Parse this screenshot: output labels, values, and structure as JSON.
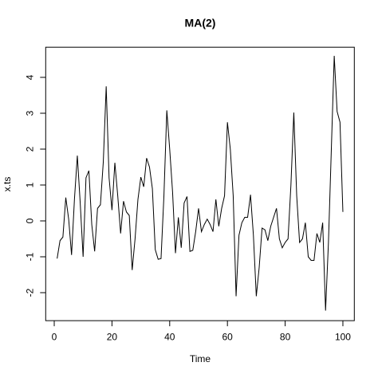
{
  "chart_data": {
    "type": "line",
    "title": "MA(2)",
    "x_label": "Time",
    "y_label": "x.ts",
    "x": [
      1,
      2,
      3,
      4,
      5,
      6,
      7,
      8,
      9,
      10,
      11,
      12,
      13,
      14,
      15,
      16,
      17,
      18,
      19,
      20,
      21,
      22,
      23,
      24,
      25,
      26,
      27,
      28,
      29,
      30,
      31,
      32,
      33,
      34,
      35,
      36,
      37,
      38,
      39,
      40,
      41,
      42,
      43,
      44,
      45,
      46,
      47,
      48,
      49,
      50,
      51,
      52,
      53,
      54,
      55,
      56,
      57,
      58,
      59,
      60,
      61,
      62,
      63,
      64,
      65,
      66,
      67,
      68,
      69,
      70,
      71,
      72,
      73,
      74,
      75,
      76,
      77,
      78,
      79,
      80,
      81,
      82,
      83,
      84,
      85,
      86,
      87,
      88,
      89,
      90,
      91,
      92,
      93,
      94,
      95,
      96,
      97,
      98,
      99,
      100
    ],
    "series": [
      {
        "name": "x.ts",
        "color": "#000000",
        "values": [
          -1.05,
          -0.55,
          -0.45,
          0.65,
          0.05,
          -0.95,
          0.6,
          1.82,
          0.5,
          -1.0,
          1.2,
          1.4,
          -0.1,
          -0.85,
          0.35,
          0.45,
          1.65,
          3.75,
          1.2,
          0.3,
          1.62,
          0.7,
          -0.35,
          0.55,
          0.25,
          0.15,
          -1.37,
          -0.5,
          0.6,
          1.22,
          0.95,
          1.75,
          1.5,
          0.9,
          -0.8,
          -1.07,
          -1.05,
          0.7,
          3.08,
          2.0,
          0.8,
          -0.9,
          0.1,
          -0.75,
          0.5,
          0.68,
          -0.85,
          -0.82,
          -0.3,
          0.35,
          -0.3,
          -0.1,
          0.05,
          -0.1,
          -0.3,
          0.6,
          -0.15,
          0.35,
          0.7,
          2.75,
          2.0,
          0.7,
          -2.1,
          -0.4,
          -0.05,
          0.1,
          0.1,
          0.73,
          -0.4,
          -2.1,
          -1.3,
          -0.2,
          -0.25,
          -0.55,
          -0.15,
          0.1,
          0.35,
          -0.5,
          -0.75,
          -0.6,
          -0.5,
          1.0,
          3.02,
          0.7,
          -0.6,
          -0.5,
          -0.05,
          -1.0,
          -1.1,
          -1.1,
          -0.35,
          -0.6,
          -0.05,
          -2.5,
          -0.6,
          2.0,
          4.6,
          3.05,
          2.75,
          0.25
        ]
      }
    ],
    "xlim": [
      -2.96,
      103.96
    ],
    "ylim": [
      -2.78,
      4.84
    ],
    "xticks": [
      0,
      20,
      40,
      60,
      80,
      100
    ],
    "yticks": [
      -2,
      -1,
      0,
      1,
      2,
      3,
      4
    ]
  }
}
